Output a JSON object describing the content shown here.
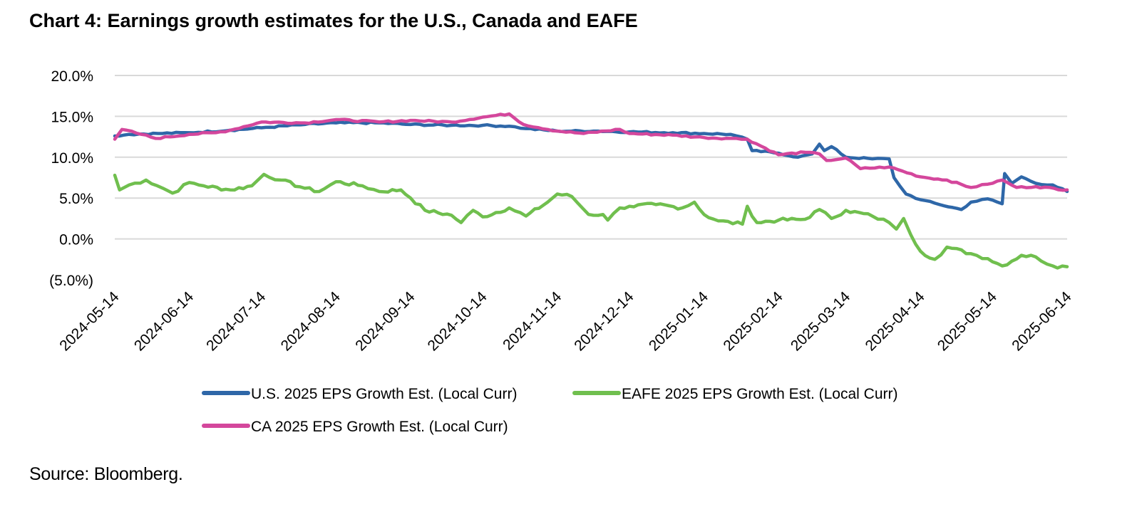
{
  "title": "Chart 4: Earnings growth estimates for the U.S., Canada and EAFE",
  "source": "Source: Bloomberg.",
  "chart_data": {
    "type": "line",
    "title": "Chart 4: Earnings growth estimates for the U.S., Canada and EAFE",
    "xlabel": "",
    "ylabel": "",
    "ylim": [
      -5,
      20
    ],
    "y_ticks": [
      20,
      15,
      10,
      5,
      0,
      -5
    ],
    "y_tick_labels": [
      "20.0%",
      "15.0%",
      "10.0%",
      "5.0%",
      "0.0%",
      "(5.0%)"
    ],
    "x_range": [
      "2024-05-14",
      "2025-06-14"
    ],
    "x_tick_labels": [
      "2024-05-14",
      "2024-06-14",
      "2024-07-14",
      "2024-08-14",
      "2024-09-14",
      "2024-10-14",
      "2024-11-14",
      "2024-12-14",
      "2025-01-14",
      "2025-02-14",
      "2025-03-14",
      "2025-04-14",
      "2025-05-14",
      "2025-06-14"
    ],
    "grid": true,
    "legend_position": "bottom",
    "series": [
      {
        "name": "U.S. 2025 EPS Growth Est. (Local Curr)",
        "color": "#2E67A8",
        "points": [
          [
            "2024-05-14",
            12.6
          ],
          [
            "2024-05-20",
            12.8
          ],
          [
            "2024-06-01",
            12.9
          ],
          [
            "2024-06-14",
            13.0
          ],
          [
            "2024-07-01",
            13.3
          ],
          [
            "2024-07-14",
            13.6
          ],
          [
            "2024-08-01",
            14.0
          ],
          [
            "2024-08-14",
            14.2
          ],
          [
            "2024-09-01",
            14.2
          ],
          [
            "2024-09-14",
            14.0
          ],
          [
            "2024-10-01",
            13.9
          ],
          [
            "2024-10-14",
            13.9
          ],
          [
            "2024-10-25",
            13.8
          ],
          [
            "2024-11-01",
            13.5
          ],
          [
            "2024-11-14",
            13.2
          ],
          [
            "2024-12-01",
            13.2
          ],
          [
            "2024-12-14",
            13.1
          ],
          [
            "2025-01-01",
            13.0
          ],
          [
            "2025-01-14",
            12.9
          ],
          [
            "2025-01-25",
            12.8
          ],
          [
            "2025-02-01",
            12.2
          ],
          [
            "2025-02-03",
            10.8
          ],
          [
            "2025-02-14",
            10.5
          ],
          [
            "2025-02-22",
            10.0
          ],
          [
            "2025-02-28",
            10.4
          ],
          [
            "2025-03-03",
            11.6
          ],
          [
            "2025-03-05",
            10.8
          ],
          [
            "2025-03-08",
            11.3
          ],
          [
            "2025-03-14",
            10.0
          ],
          [
            "2025-03-25",
            9.8
          ],
          [
            "2025-04-01",
            9.8
          ],
          [
            "2025-04-03",
            7.5
          ],
          [
            "2025-04-08",
            5.5
          ],
          [
            "2025-04-14",
            4.8
          ],
          [
            "2025-04-22",
            4.2
          ],
          [
            "2025-05-01",
            3.6
          ],
          [
            "2025-05-05",
            4.5
          ],
          [
            "2025-05-12",
            4.9
          ],
          [
            "2025-05-18",
            4.3
          ],
          [
            "2025-05-19",
            8.0
          ],
          [
            "2025-05-22",
            6.8
          ],
          [
            "2025-05-26",
            7.6
          ],
          [
            "2025-06-01",
            6.8
          ],
          [
            "2025-06-08",
            6.6
          ],
          [
            "2025-06-14",
            5.8
          ]
        ]
      },
      {
        "name": "EAFE 2025 EPS Growth Est. (Local Curr)",
        "color": "#70BF4E",
        "points": [
          [
            "2024-05-14",
            7.8
          ],
          [
            "2024-05-16",
            6.0
          ],
          [
            "2024-05-20",
            6.6
          ],
          [
            "2024-05-27",
            7.2
          ],
          [
            "2024-06-03",
            6.2
          ],
          [
            "2024-06-07",
            5.6
          ],
          [
            "2024-06-14",
            6.9
          ],
          [
            "2024-06-20",
            6.5
          ],
          [
            "2024-07-01",
            6.0
          ],
          [
            "2024-07-10",
            6.5
          ],
          [
            "2024-07-15",
            7.9
          ],
          [
            "2024-07-22",
            7.2
          ],
          [
            "2024-08-01",
            6.2
          ],
          [
            "2024-08-07",
            5.8
          ],
          [
            "2024-08-14",
            7.0
          ],
          [
            "2024-08-25",
            6.5
          ],
          [
            "2024-09-01",
            5.8
          ],
          [
            "2024-09-10",
            6.0
          ],
          [
            "2024-09-14",
            5.0
          ],
          [
            "2024-09-20",
            3.5
          ],
          [
            "2024-10-01",
            2.9
          ],
          [
            "2024-10-05",
            2.0
          ],
          [
            "2024-10-10",
            3.5
          ],
          [
            "2024-10-14",
            2.7
          ],
          [
            "2024-10-25",
            3.8
          ],
          [
            "2024-11-01",
            2.8
          ],
          [
            "2024-11-10",
            4.5
          ],
          [
            "2024-11-14",
            5.5
          ],
          [
            "2024-11-20",
            5.2
          ],
          [
            "2024-11-27",
            3.0
          ],
          [
            "2024-12-03",
            3.0
          ],
          [
            "2024-12-05",
            2.3
          ],
          [
            "2024-12-10",
            3.8
          ],
          [
            "2024-12-14",
            4.0
          ],
          [
            "2024-12-25",
            4.2
          ],
          [
            "2025-01-05",
            3.8
          ],
          [
            "2025-01-10",
            4.5
          ],
          [
            "2025-01-14",
            3.0
          ],
          [
            "2025-01-20",
            2.2
          ],
          [
            "2025-01-30",
            1.8
          ],
          [
            "2025-02-01",
            4.0
          ],
          [
            "2025-02-05",
            2.0
          ],
          [
            "2025-02-14",
            2.3
          ],
          [
            "2025-02-25",
            2.4
          ],
          [
            "2025-03-03",
            3.6
          ],
          [
            "2025-03-08",
            2.5
          ],
          [
            "2025-03-14",
            3.5
          ],
          [
            "2025-03-25",
            2.8
          ],
          [
            "2025-04-01",
            2.0
          ],
          [
            "2025-04-04",
            1.2
          ],
          [
            "2025-04-07",
            2.5
          ],
          [
            "2025-04-10",
            0.5
          ],
          [
            "2025-04-14",
            -1.5
          ],
          [
            "2025-04-20",
            -2.5
          ],
          [
            "2025-04-25",
            -1.0
          ],
          [
            "2025-05-05",
            -1.8
          ],
          [
            "2025-05-12",
            -2.4
          ],
          [
            "2025-05-18",
            -3.3
          ],
          [
            "2025-05-26",
            -2.0
          ],
          [
            "2025-06-01",
            -2.2
          ],
          [
            "2025-06-08",
            -3.3
          ],
          [
            "2025-06-14",
            -3.4
          ]
        ]
      },
      {
        "name": "CA 2025 EPS Growth Est. (Local Curr)",
        "color": "#D4479C",
        "points": [
          [
            "2024-05-14",
            12.2
          ],
          [
            "2024-05-17",
            13.4
          ],
          [
            "2024-05-25",
            12.8
          ],
          [
            "2024-05-31",
            12.3
          ],
          [
            "2024-06-14",
            12.8
          ],
          [
            "2024-06-25",
            13.0
          ],
          [
            "2024-07-01",
            13.3
          ],
          [
            "2024-07-14",
            14.3
          ],
          [
            "2024-08-01",
            14.2
          ],
          [
            "2024-08-14",
            14.6
          ],
          [
            "2024-09-01",
            14.3
          ],
          [
            "2024-09-14",
            14.5
          ],
          [
            "2024-10-01",
            14.3
          ],
          [
            "2024-10-14",
            14.9
          ],
          [
            "2024-10-25",
            15.3
          ],
          [
            "2024-10-31",
            14.0
          ],
          [
            "2024-11-14",
            13.2
          ],
          [
            "2024-11-25",
            12.9
          ],
          [
            "2024-12-10",
            13.4
          ],
          [
            "2024-12-14",
            12.9
          ],
          [
            "2025-01-01",
            12.7
          ],
          [
            "2025-01-14",
            12.4
          ],
          [
            "2025-01-25",
            12.3
          ],
          [
            "2025-02-01",
            12.2
          ],
          [
            "2025-02-14",
            10.3
          ],
          [
            "2025-02-25",
            10.6
          ],
          [
            "2025-03-03",
            10.4
          ],
          [
            "2025-03-06",
            9.6
          ],
          [
            "2025-03-14",
            9.9
          ],
          [
            "2025-03-20",
            8.6
          ],
          [
            "2025-04-01",
            8.8
          ],
          [
            "2025-04-14",
            7.6
          ],
          [
            "2025-04-25",
            7.2
          ],
          [
            "2025-05-05",
            6.3
          ],
          [
            "2025-05-12",
            6.7
          ],
          [
            "2025-05-18",
            7.2
          ],
          [
            "2025-05-24",
            6.3
          ],
          [
            "2025-06-01",
            6.4
          ],
          [
            "2025-06-14",
            6.0
          ]
        ]
      }
    ]
  }
}
